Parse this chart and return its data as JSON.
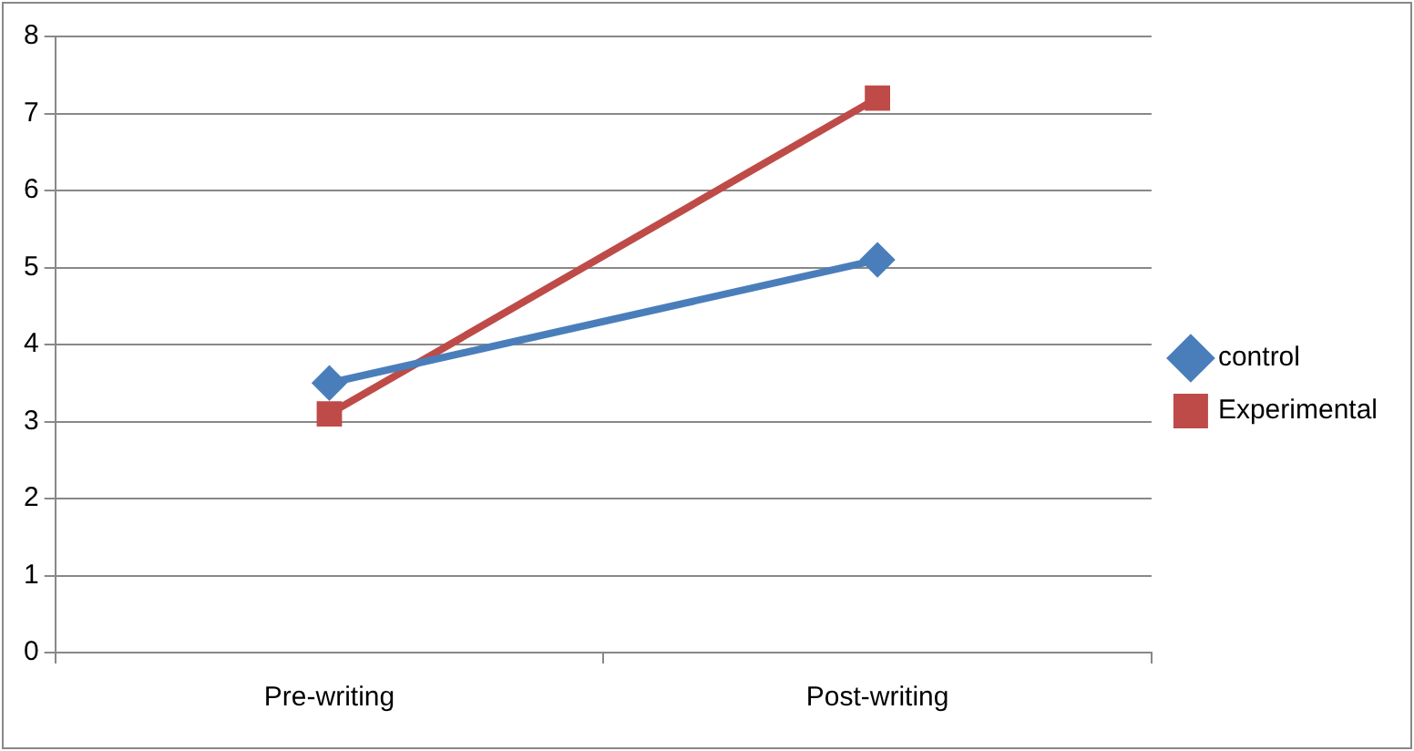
{
  "chart_data": {
    "type": "line",
    "categories": [
      "Pre-writing",
      "Post-writing"
    ],
    "series": [
      {
        "name": "control",
        "color": "#4a7ebb",
        "values": [
          3.5,
          5.1
        ],
        "marker": "diamond"
      },
      {
        "name": "Experimental",
        "color": "#be4b48",
        "values": [
          3.1,
          7.2
        ],
        "marker": "square"
      }
    ],
    "ylim": [
      0,
      8
    ],
    "yticks": [
      0,
      1,
      2,
      3,
      4,
      5,
      6,
      7,
      8
    ],
    "grid": "y",
    "legend": "right"
  }
}
